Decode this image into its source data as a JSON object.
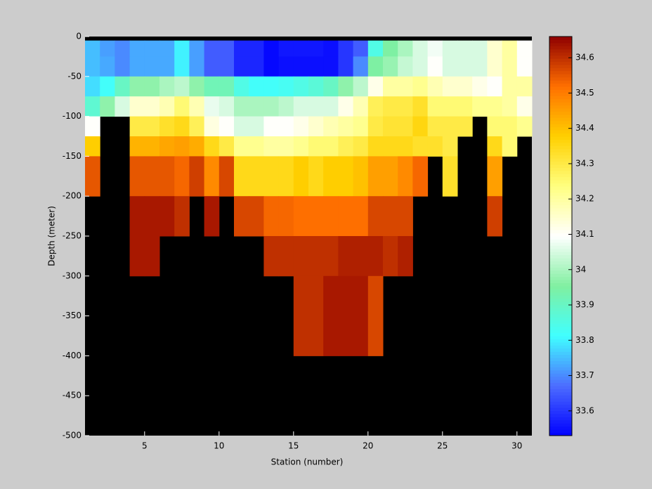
{
  "chart_data": {
    "type": "heatmap",
    "xlabel": "Station (number)",
    "ylabel": "Depth (meter)",
    "x": [
      1,
      2,
      3,
      4,
      5,
      6,
      7,
      8,
      9,
      10,
      11,
      12,
      13,
      14,
      15,
      16,
      17,
      18,
      19,
      20,
      21,
      22,
      23,
      24,
      25,
      26,
      27,
      28,
      29,
      30,
      31
    ],
    "y": [
      0,
      -5,
      -25,
      -50,
      -75,
      -100,
      -125,
      -150,
      -200,
      -250,
      -300,
      -400,
      -500
    ],
    "values": [
      [
        null,
        null,
        null,
        null,
        null,
        null,
        null,
        null,
        null,
        null,
        null,
        null,
        null,
        null,
        null,
        null,
        null,
        null,
        null,
        null,
        null,
        null,
        null,
        null,
        null,
        null,
        null,
        null,
        null,
        null
      ],
      [
        33.75,
        33.72,
        33.7,
        33.73,
        33.73,
        33.73,
        33.8,
        33.72,
        33.65,
        33.65,
        33.58,
        33.58,
        33.54,
        33.56,
        33.56,
        33.56,
        33.55,
        33.6,
        33.65,
        33.85,
        33.95,
        34.0,
        34.05,
        34.08,
        34.05,
        34.05,
        34.05,
        34.15,
        34.2,
        34.1
      ],
      [
        33.75,
        33.73,
        33.7,
        33.73,
        33.73,
        33.73,
        33.8,
        33.72,
        33.65,
        33.65,
        33.58,
        33.58,
        33.54,
        33.55,
        33.55,
        33.55,
        33.55,
        33.6,
        33.7,
        33.95,
        33.98,
        34.03,
        34.05,
        34.1,
        34.05,
        34.05,
        34.05,
        34.15,
        34.2,
        34.1
      ],
      [
        33.78,
        33.82,
        33.9,
        33.97,
        33.97,
        34.0,
        34.02,
        33.97,
        33.92,
        33.92,
        33.85,
        33.82,
        33.82,
        33.83,
        33.85,
        33.87,
        33.9,
        33.97,
        34.02,
        34.12,
        34.2,
        34.2,
        34.22,
        34.18,
        34.15,
        34.15,
        34.12,
        34.1,
        34.2,
        34.2
      ],
      [
        33.88,
        33.97,
        34.05,
        34.15,
        34.15,
        34.18,
        34.25,
        34.18,
        34.07,
        34.05,
        34.0,
        34.0,
        34.0,
        34.02,
        34.05,
        34.05,
        34.05,
        34.12,
        34.18,
        34.28,
        34.3,
        34.3,
        34.33,
        34.25,
        34.25,
        34.25,
        34.22,
        34.22,
        34.2,
        34.12
      ],
      [
        34.1,
        null,
        null,
        34.3,
        34.3,
        34.33,
        34.35,
        34.28,
        34.13,
        34.1,
        34.05,
        34.05,
        34.1,
        34.1,
        34.12,
        34.15,
        34.18,
        34.2,
        34.22,
        34.3,
        34.32,
        34.32,
        34.36,
        34.3,
        34.3,
        34.3,
        null,
        34.25,
        34.25,
        34.22
      ],
      [
        34.38,
        null,
        null,
        34.42,
        34.42,
        34.44,
        34.45,
        34.43,
        34.35,
        34.3,
        34.22,
        34.22,
        34.2,
        34.2,
        34.22,
        34.25,
        34.25,
        34.28,
        34.3,
        34.35,
        34.35,
        34.35,
        34.33,
        34.33,
        34.3,
        null,
        null,
        34.35,
        34.25,
        null
      ],
      [
        34.55,
        null,
        null,
        34.55,
        34.55,
        34.55,
        34.53,
        34.58,
        34.48,
        34.57,
        34.35,
        34.35,
        34.35,
        34.35,
        34.38,
        34.35,
        34.38,
        34.38,
        34.4,
        34.45,
        34.45,
        34.48,
        34.53,
        null,
        34.33,
        null,
        null,
        34.45,
        null,
        null
      ],
      [
        null,
        null,
        null,
        34.63,
        34.63,
        34.63,
        34.6,
        null,
        34.63,
        null,
        34.57,
        34.57,
        34.53,
        34.53,
        34.52,
        34.52,
        34.52,
        34.52,
        34.52,
        34.57,
        34.57,
        34.57,
        null,
        null,
        null,
        null,
        null,
        34.58,
        null,
        null
      ],
      [
        null,
        null,
        null,
        34.63,
        34.63,
        null,
        null,
        null,
        null,
        null,
        null,
        null,
        34.6,
        34.6,
        34.6,
        34.6,
        34.6,
        34.62,
        34.62,
        34.62,
        34.6,
        34.62,
        null,
        null,
        null,
        null,
        null,
        null,
        null,
        null
      ],
      [
        null,
        null,
        null,
        null,
        null,
        null,
        null,
        null,
        null,
        null,
        null,
        null,
        null,
        null,
        34.6,
        34.6,
        34.63,
        34.63,
        34.63,
        34.57,
        null,
        null,
        null,
        null,
        null,
        null,
        null,
        null,
        null,
        null
      ],
      [
        null,
        null,
        null,
        null,
        null,
        null,
        null,
        null,
        null,
        null,
        null,
        null,
        null,
        null,
        null,
        null,
        null,
        null,
        null,
        null,
        null,
        null,
        null,
        null,
        null,
        null,
        null,
        null,
        null,
        null
      ]
    ],
    "xlim": [
      1,
      31
    ],
    "ylim": [
      -500,
      0
    ],
    "xticks": [
      5,
      10,
      15,
      20,
      25,
      30
    ],
    "yticks": [
      -500,
      -450,
      -400,
      -350,
      -300,
      -250,
      -200,
      -150,
      -100,
      -50,
      0
    ],
    "clim": [
      33.53,
      34.66
    ],
    "cticks": [
      33.6,
      33.7,
      33.8,
      33.9,
      34,
      34.1,
      34.2,
      34.3,
      34.4,
      34.5,
      34.6
    ],
    "colormap": [
      "#0000ff",
      "#4c6cff",
      "#40ffff",
      "#80f0a0",
      "#ffffff",
      "#ffff80",
      "#ffd000",
      "#ff7000",
      "#900000"
    ],
    "nan_color": "#000000"
  }
}
